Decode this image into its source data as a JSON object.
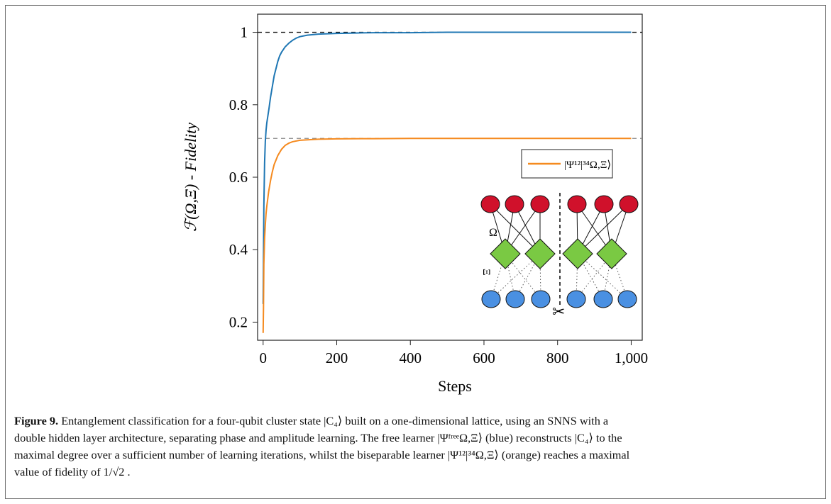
{
  "chart_data": {
    "type": "line",
    "xlabel": "Steps",
    "ylabel": "ℱ(Ω,Ξ) - Fidelity",
    "xlim": [
      -15,
      1030
    ],
    "ylim": [
      0.15,
      1.05
    ],
    "x_ticks": [
      0,
      200,
      400,
      600,
      800,
      1000
    ],
    "x_tick_labels": [
      "0",
      "200",
      "400",
      "600",
      "800",
      "1,000"
    ],
    "y_ticks": [
      0.2,
      0.4,
      0.6,
      0.8,
      1.0
    ],
    "y_tick_labels": [
      "0.2",
      "0.4",
      "0.6",
      "0.8",
      "1"
    ],
    "reference_lines": [
      1.0,
      0.7071
    ],
    "legend": {
      "placement": "right",
      "entry": "|Ψ¹²|³⁴Ω,Ξ⟩",
      "color": "#f58a1f"
    },
    "series": [
      {
        "color": "#1f77b4",
        "x": [
          0,
          2,
          4,
          6,
          8,
          10,
          13,
          16,
          20,
          25,
          30,
          35,
          40,
          45,
          50,
          60,
          70,
          80,
          90,
          100,
          120,
          150,
          200,
          250,
          300,
          400,
          500,
          600,
          700,
          800,
          900,
          1000
        ],
        "y": [
          0.25,
          0.52,
          0.64,
          0.7,
          0.73,
          0.75,
          0.77,
          0.79,
          0.82,
          0.85,
          0.88,
          0.9,
          0.92,
          0.935,
          0.945,
          0.96,
          0.97,
          0.978,
          0.984,
          0.988,
          0.992,
          0.995,
          0.997,
          0.998,
          0.999,
          0.999,
          1.0,
          1.0,
          1.0,
          1.0,
          1.0,
          1.0
        ]
      },
      {
        "color": "#f58a1f",
        "x": [
          0,
          1,
          2,
          4,
          6,
          8,
          10,
          15,
          20,
          25,
          30,
          40,
          50,
          60,
          70,
          80,
          100,
          150,
          200,
          300,
          400,
          500,
          600,
          700,
          800,
          900,
          1000
        ],
        "y": [
          0.17,
          0.24,
          0.36,
          0.43,
          0.47,
          0.5,
          0.52,
          0.56,
          0.59,
          0.615,
          0.635,
          0.66,
          0.677,
          0.688,
          0.694,
          0.698,
          0.702,
          0.705,
          0.706,
          0.7065,
          0.707,
          0.707,
          0.707,
          0.707,
          0.707,
          0.707,
          0.707
        ]
      }
    ]
  },
  "inset": {
    "omega_label": "Ω",
    "xi_label": "Ξ",
    "scissors": "✂"
  },
  "caption": {
    "label": "Figure 9.",
    "line1": "Entanglement classification for a four-qubit cluster state |C₄⟩ built on a one-dimensional lattice, using an SNNS with a",
    "line2": "double hidden layer architecture, separating phase and amplitude learning. The free learner |ΨᶠʳᵉᵉΩ,Ξ⟩ (blue) reconstructs |C₄⟩ to the",
    "line3": "maximal degree over a sufficient number of learning iterations, whilst the biseparable learner |Ψ¹²|³⁴Ω,Ξ⟩ (orange) reaches a maximal",
    "line4": "value of fidelity of 1/√2 ."
  }
}
